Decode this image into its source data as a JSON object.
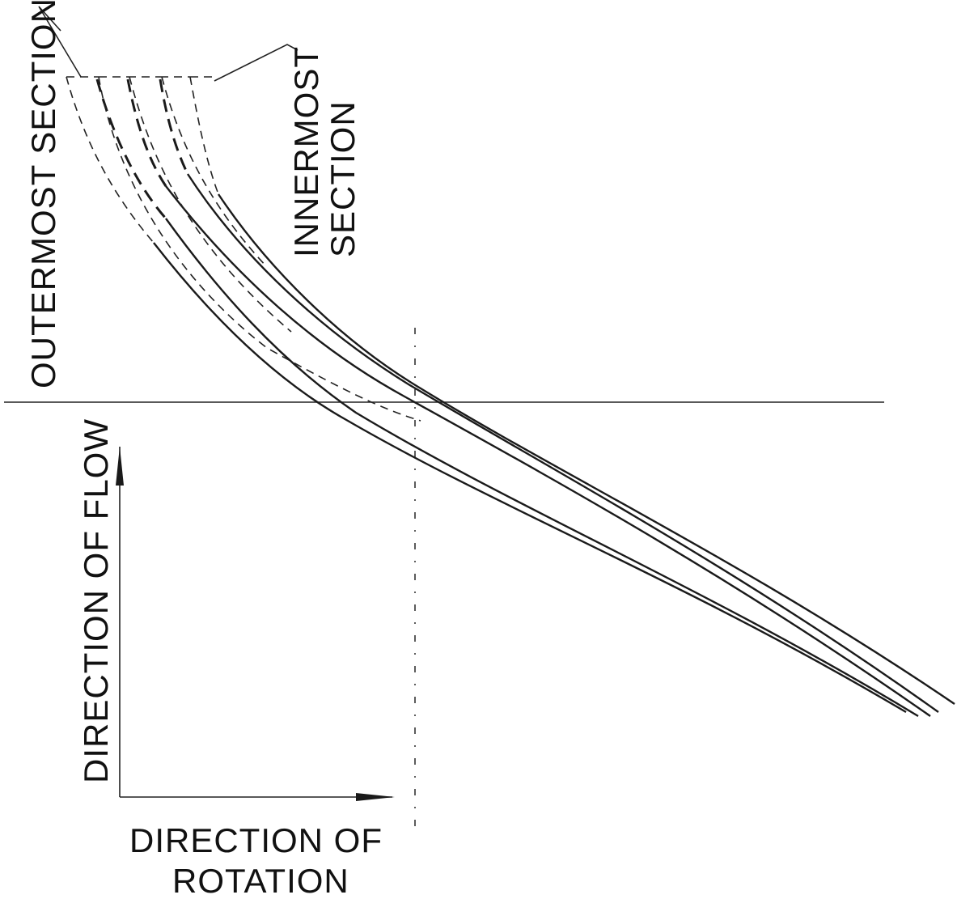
{
  "labels": {
    "outermost": "OUTERMOST SECTION",
    "innermost_line1": "INNERMOST",
    "innermost_line2": "SECTION",
    "flow": "DIRECTION OF FLOW",
    "rotation_line1": "DIRECTION OF",
    "rotation_line2": "ROTATION"
  },
  "colors": {
    "ink": "#1a1a1a",
    "background": "#ffffff"
  },
  "sections": [
    {
      "name": ""
    },
    {
      "name": ""
    },
    {
      "name": ""
    },
    {
      "name": ""
    },
    {
      "name": ""
    }
  ]
}
